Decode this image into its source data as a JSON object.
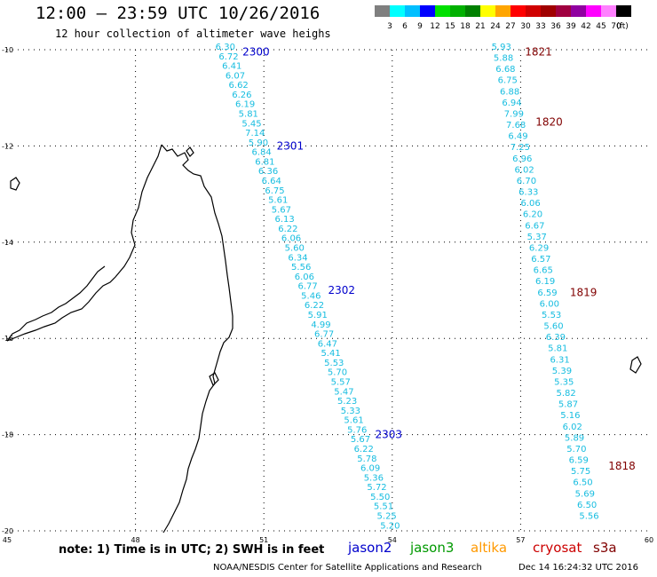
{
  "header": {
    "title": "12:00 – 23:59 UTC 10/26/2016",
    "subtitle": "12 hour collection of altimeter wave heighs"
  },
  "legend": {
    "unit": "(ft)",
    "levels": [
      {
        "label": "3",
        "color": "#7f7f7f"
      },
      {
        "label": "6",
        "color": "#00ffff"
      },
      {
        "label": "9",
        "color": "#00bfff"
      },
      {
        "label": "12",
        "color": "#0000ff"
      },
      {
        "label": "15",
        "color": "#00e000"
      },
      {
        "label": "18",
        "color": "#00b000"
      },
      {
        "label": "21",
        "color": "#008000"
      },
      {
        "label": "24",
        "color": "#ffff00"
      },
      {
        "label": "27",
        "color": "#ffa500"
      },
      {
        "label": "30",
        "color": "#ff0000"
      },
      {
        "label": "33",
        "color": "#d00000"
      },
      {
        "label": "36",
        "color": "#a00000"
      },
      {
        "label": "39",
        "color": "#a00040"
      },
      {
        "label": "42",
        "color": "#9000a0"
      },
      {
        "label": "45",
        "color": "#ff00ff"
      },
      {
        "label": "70",
        "color": "#ff80ff"
      },
      {
        "label": "",
        "color": "#000000"
      }
    ]
  },
  "map": {
    "lon_range": [
      45,
      60
    ],
    "lat_range": [
      -20,
      -10
    ],
    "x_ticks": [
      "45",
      "48",
      "51",
      "54",
      "57",
      "60"
    ],
    "y_ticks": [
      "-10",
      "-12",
      "-14",
      "-16",
      "-18",
      "-20"
    ],
    "track_color": "#17bde0",
    "tracks": [
      {
        "satellite": "jason2",
        "values": [
          "6.30",
          "6.72",
          "6.41",
          "6.07",
          "6.62",
          "6.26",
          "6.19",
          "5.81",
          "5.45",
          "7.14",
          "5.90",
          "6.84",
          "6.81",
          "6.36",
          "6.64",
          "6.75",
          "5.61",
          "5.67",
          "6.13",
          "6.22",
          "6.06",
          "5.60",
          "6.34",
          "5.56",
          "6.06",
          "6.77",
          "5.46",
          "6.22",
          "5.91",
          "4.99",
          "6.77",
          "6.47",
          "5.41",
          "5.53",
          "5.70",
          "5.57",
          "5.47",
          "5.23",
          "5.33",
          "5.61",
          "5.76",
          "5.67",
          "6.22",
          "5.78",
          "6.09",
          "5.36",
          "5.72",
          "5.50",
          "5.51",
          "5.25",
          "5.20"
        ],
        "start": [
          50.1,
          -10.0
        ],
        "end": [
          53.95,
          -19.95
        ]
      },
      {
        "satellite": "cryosat",
        "values": [
          "5.93",
          "5.88",
          "6.68",
          "6.75",
          "6.88",
          "6.94",
          "7.99",
          "7.68",
          "6.49",
          "7.25",
          "6.96",
          "6.02",
          "6.70",
          "6.33",
          "6.06",
          "6.20",
          "6.67",
          "5.37",
          "6.29",
          "6.57",
          "6.65",
          "6.19",
          "6.59",
          "6.00",
          "5.53",
          "5.60",
          "6.39",
          "5.81",
          "6.31",
          "5.39",
          "5.35",
          "5.82",
          "5.87",
          "5.16",
          "6.02",
          "5.89",
          "5.70",
          "6.59",
          "5.75",
          "6.50",
          "5.69",
          "6.50",
          "5.56"
        ],
        "start": [
          56.55,
          -10.0
        ],
        "end": [
          58.6,
          -19.75
        ]
      }
    ],
    "time_labels": [
      {
        "text": "2300",
        "color": "#0000cc",
        "lon": 50.5,
        "lat": -10.05
      },
      {
        "text": "2301",
        "color": "#0000cc",
        "lon": 51.3,
        "lat": -12.0
      },
      {
        "text": "2302",
        "color": "#0000cc",
        "lon": 52.5,
        "lat": -15.0
      },
      {
        "text": "2303",
        "color": "#0000cc",
        "lon": 53.6,
        "lat": -18.0
      },
      {
        "text": "1821",
        "color": "#800000",
        "lon": 57.1,
        "lat": -10.05
      },
      {
        "text": "1820",
        "color": "#800000",
        "lon": 57.35,
        "lat": -11.5
      },
      {
        "text": "1819",
        "color": "#800000",
        "lon": 58.15,
        "lat": -15.05
      },
      {
        "text": "1818",
        "color": "#800000",
        "lon": 59.05,
        "lat": -18.65
      }
    ]
  },
  "footer": {
    "note": "note: 1) Time is in UTC; 2) SWH is in feet",
    "satellites": [
      {
        "name": "jason2",
        "color": "#0000cc"
      },
      {
        "name": "jason3",
        "color": "#009900"
      },
      {
        "name": "altika",
        "color": "#ff9900"
      },
      {
        "name": "cryosat",
        "color": "#cc0000"
      },
      {
        "name": "s3a",
        "color": "#800000"
      }
    ],
    "credit": "NOAA/NESDIS Center for Satellite Applications and Research",
    "timestamp": "Dec 14 16:24:32 UTC 2016"
  }
}
